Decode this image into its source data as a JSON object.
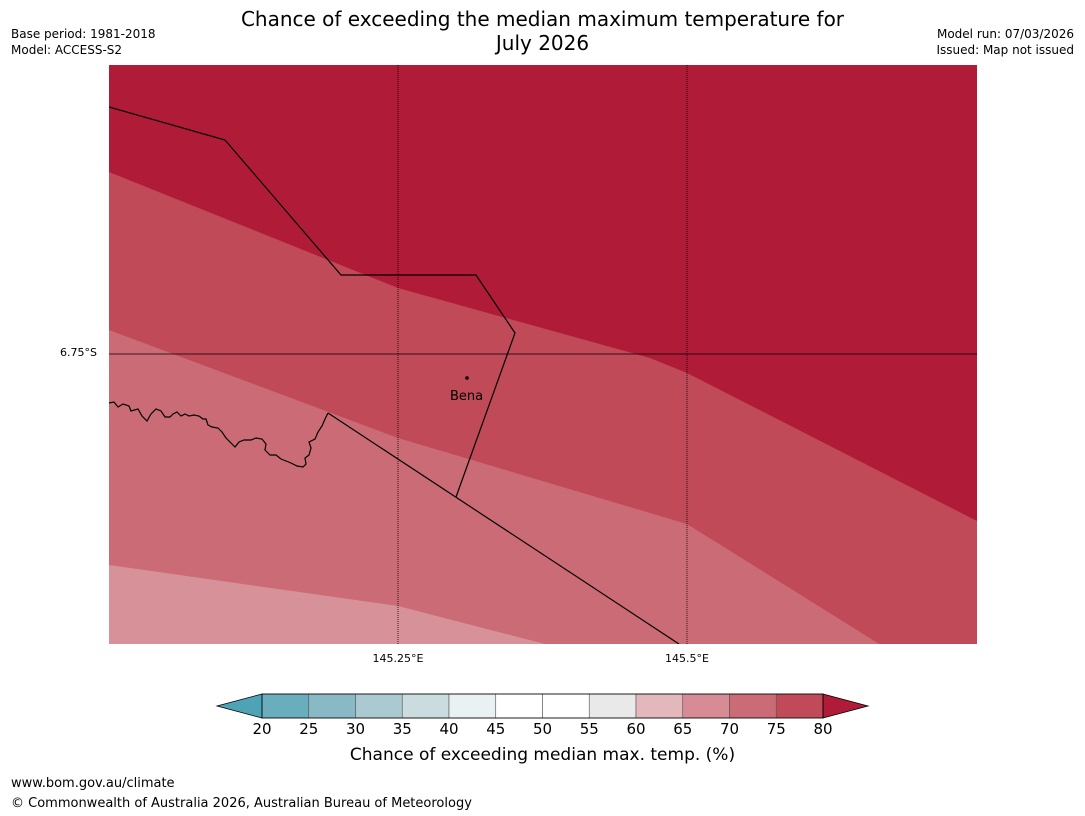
{
  "header": {
    "title_line1": "Chance of exceeding the median maximum temperature for",
    "title_line2": "July 2026",
    "base_period": "Base period: 1981-2018",
    "model": "Model: ACCESS-S2",
    "model_run": "Model run: 07/03/2026",
    "issued": "Issued: Map not issued"
  },
  "map": {
    "graticule": {
      "latitude_label": "6.75°S",
      "longitude_labels": [
        "145.25°E",
        "145.5°E"
      ]
    },
    "place": {
      "name": "Bena",
      "marker_icon": "location-dot-icon"
    },
    "zones": [
      {
        "band": "80+",
        "color": "#b01c38"
      },
      {
        "band": "75-80",
        "color": "#c04a57"
      },
      {
        "band": "70-75",
        "color": "#cb6b75"
      },
      {
        "band": "65-70",
        "color": "#d79299"
      }
    ]
  },
  "legend": {
    "title": "Chance of exceeding median max. temp. (%)",
    "ticks": [
      "20",
      "25",
      "30",
      "35",
      "40",
      "45",
      "50",
      "55",
      "60",
      "65",
      "70",
      "75",
      "80"
    ],
    "colors": [
      "#4ea4b6",
      "#6aadbd",
      "#8ab9c6",
      "#aac9d0",
      "#cbdcdf",
      "#eaf1f3",
      "#ffffff",
      "#ffffff",
      "#e9e9e9",
      "#e2b8bd",
      "#d78c95",
      "#cb6b75",
      "#c04a57",
      "#b01c38"
    ]
  },
  "footer": {
    "url": "www.bom.gov.au/climate",
    "copyright": "© Commonwealth of Australia 2026, Australian Bureau of Meteorology"
  }
}
